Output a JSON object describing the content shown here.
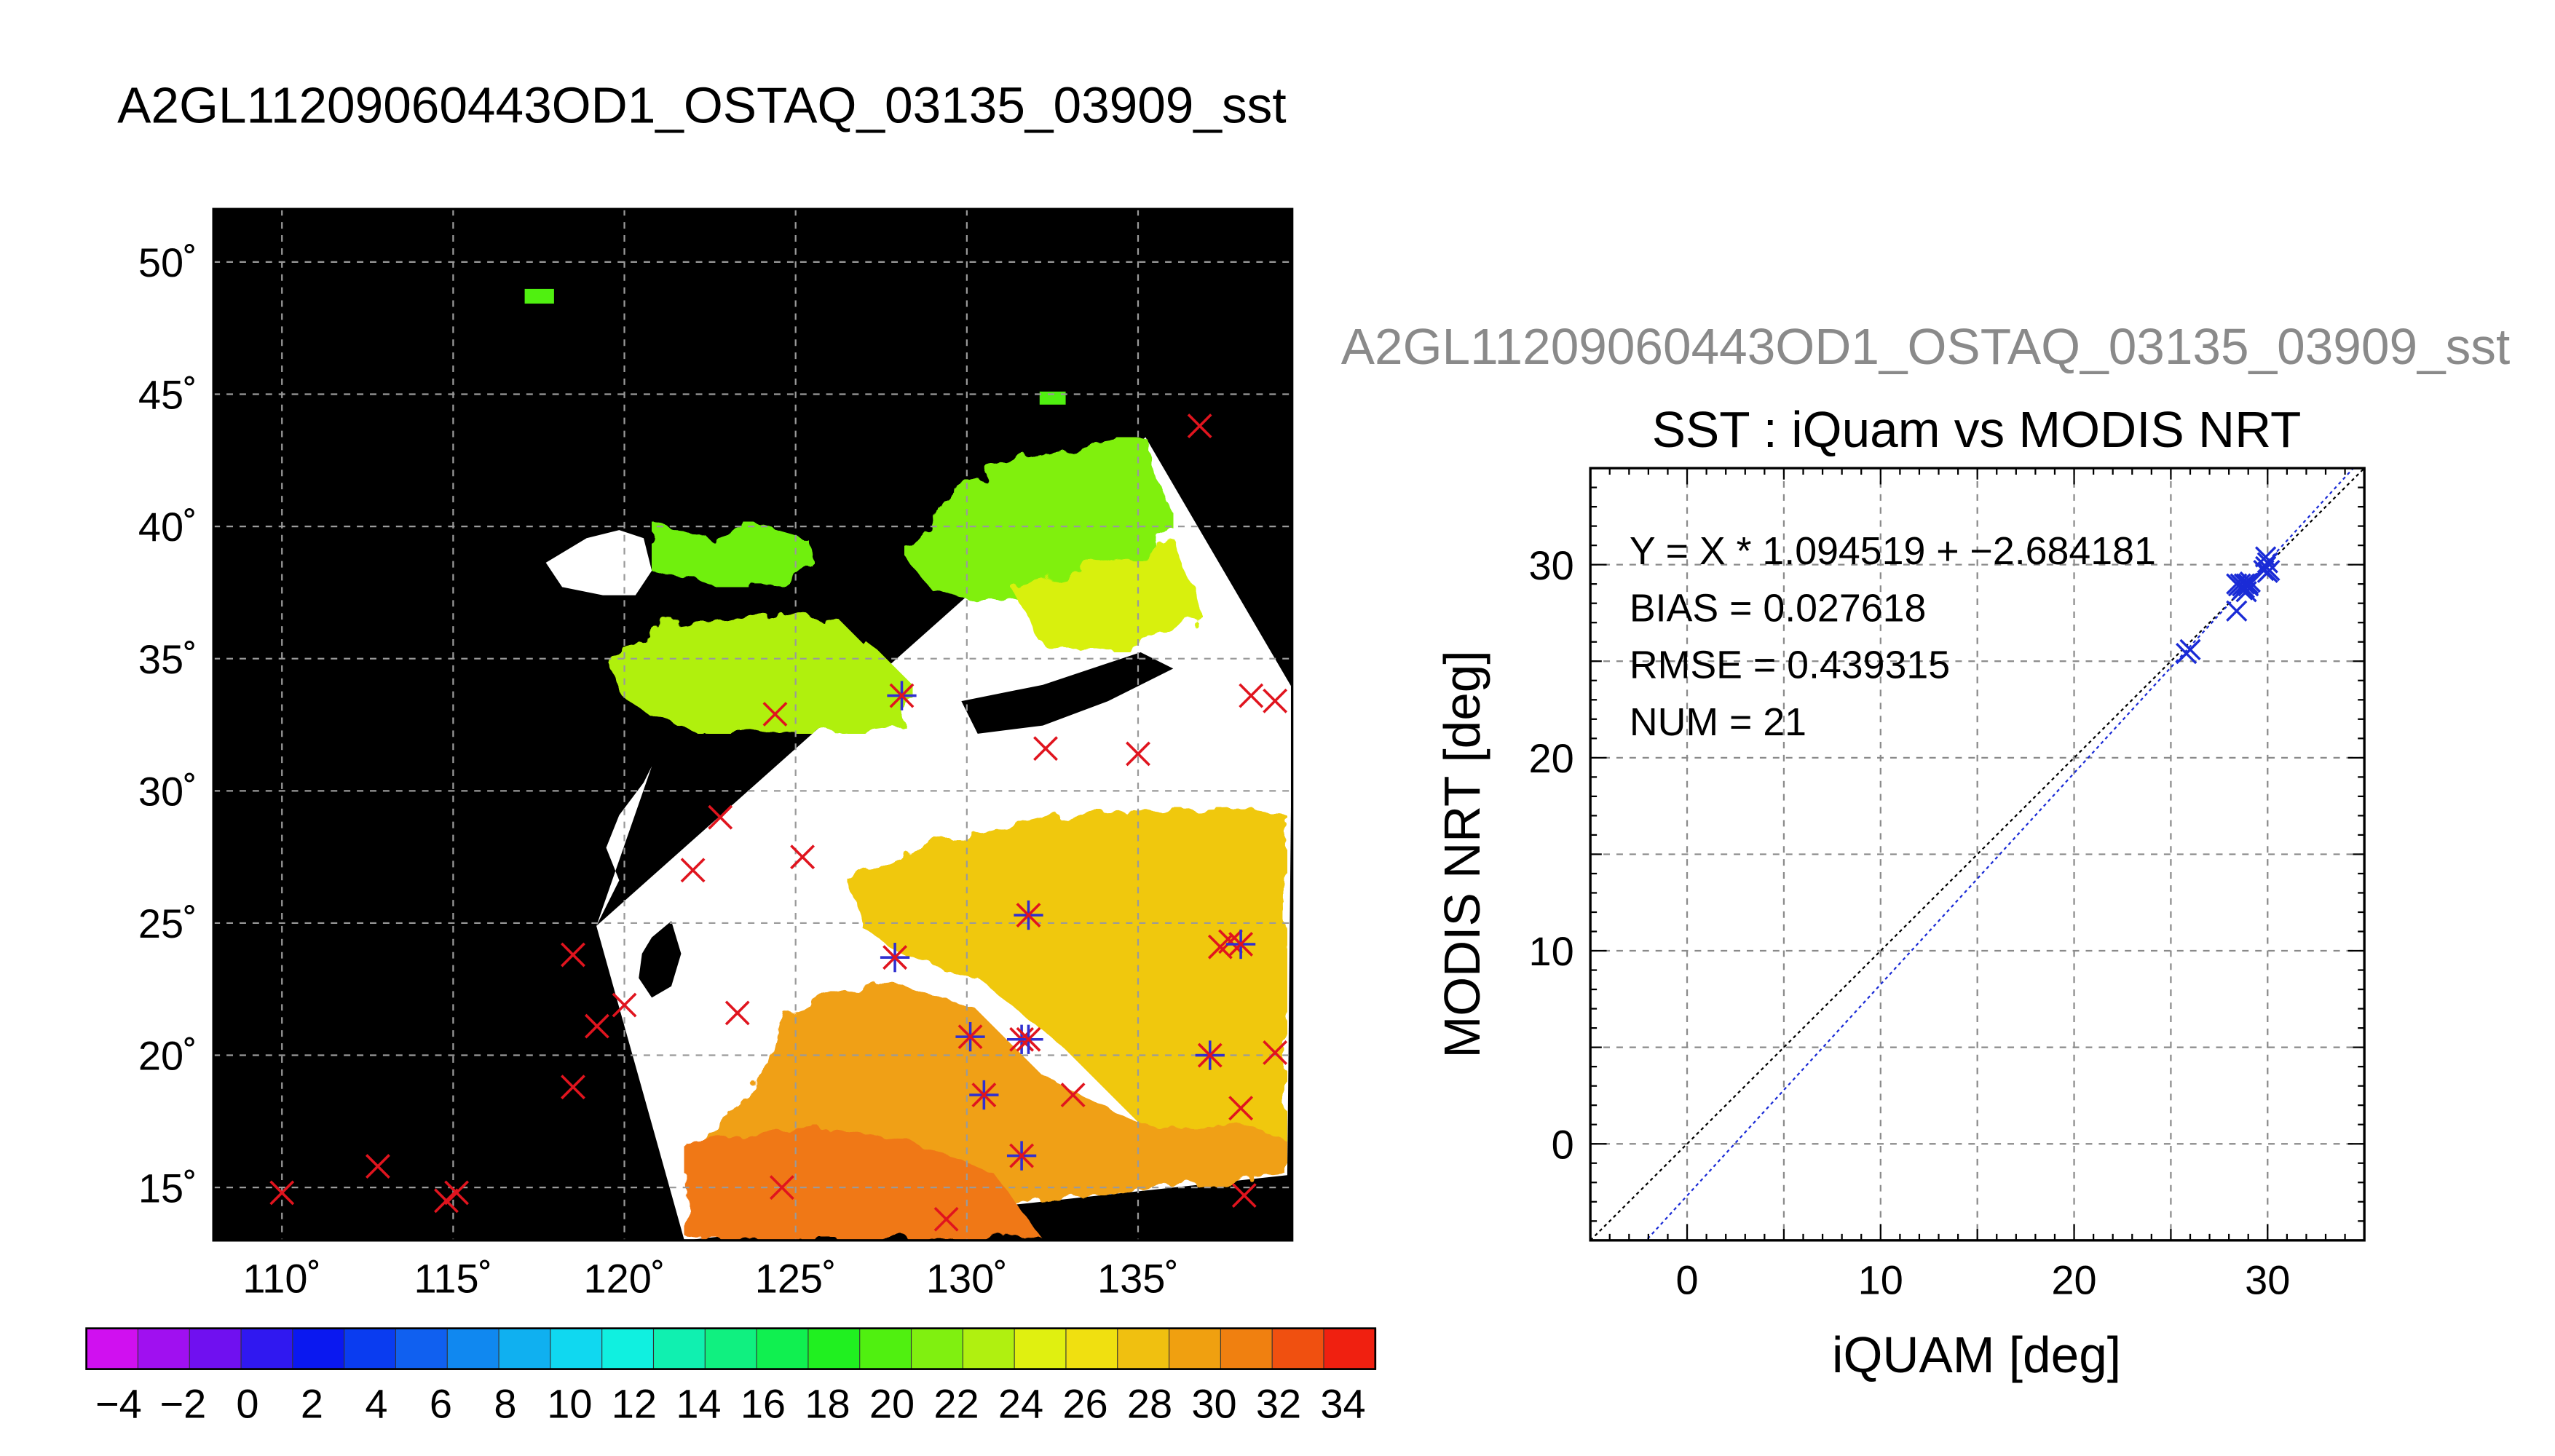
{
  "page_title": "A2GL11209060443OD1_OSTAQ_03135_03909_sst",
  "colors": {
    "background": "#ffffff",
    "map_land": "#000000",
    "cloud": "#ffffff",
    "marker_red": "#e0141e",
    "marker_blue": "#3030d0",
    "fit_line": "#1a2bd6",
    "one_to_one_line": "#000000"
  },
  "map": {
    "lat_ticks": [
      "50˚",
      "45˚",
      "40˚",
      "35˚",
      "30˚",
      "25˚",
      "20˚",
      "15˚"
    ],
    "lon_ticks": [
      "110˚",
      "115˚",
      "120˚",
      "125˚",
      "130˚",
      "135˚"
    ],
    "lat_range": [
      13,
      52
    ],
    "lon_range": [
      108,
      139.5
    ],
    "grid": true,
    "colorbar": {
      "range": [
        -5,
        35
      ],
      "tick_labels": [
        "−4",
        "−2",
        "0",
        "2",
        "4",
        "6",
        "8",
        "10",
        "12",
        "14",
        "16",
        "18",
        "20",
        "22",
        "24",
        "26",
        "28",
        "30",
        "32",
        "34"
      ],
      "colors": [
        "#d010f0",
        "#a010f0",
        "#7010f0",
        "#3018f0",
        "#0a18f0",
        "#0a3cf0",
        "#1060f0",
        "#1088f0",
        "#10b0f0",
        "#10d8f0",
        "#10f0e0",
        "#10f0b0",
        "#10f080",
        "#10f050",
        "#20f020",
        "#50f010",
        "#80f010",
        "#b0f010",
        "#e0f010",
        "#f0e010",
        "#f0c010",
        "#f0a010",
        "#f08010",
        "#f05010",
        "#f02010"
      ]
    },
    "red_markers": [
      {
        "lon": 110,
        "lat": 14.8
      },
      {
        "lon": 112.8,
        "lat": 15.8
      },
      {
        "lon": 114.8,
        "lat": 14.5
      },
      {
        "lon": 115.1,
        "lat": 14.8
      },
      {
        "lon": 118.5,
        "lat": 23.8
      },
      {
        "lon": 118.5,
        "lat": 18.8
      },
      {
        "lon": 119.2,
        "lat": 21.1
      },
      {
        "lon": 120,
        "lat": 21.9
      },
      {
        "lon": 122,
        "lat": 27
      },
      {
        "lon": 122.8,
        "lat": 29
      },
      {
        "lon": 123.3,
        "lat": 21.6
      },
      {
        "lon": 124.4,
        "lat": 32.9
      },
      {
        "lon": 124.6,
        "lat": 15
      },
      {
        "lon": 125.2,
        "lat": 27.5
      },
      {
        "lon": 129.4,
        "lat": 13.8
      },
      {
        "lon": 132.3,
        "lat": 31.6
      },
      {
        "lon": 133.1,
        "lat": 18.5
      },
      {
        "lon": 135,
        "lat": 31.4
      },
      {
        "lon": 136.8,
        "lat": 43.8
      },
      {
        "lon": 137.4,
        "lat": 24.1
      },
      {
        "lon": 137.7,
        "lat": 24.3
      },
      {
        "lon": 138,
        "lat": 18
      },
      {
        "lon": 138.1,
        "lat": 14.7
      },
      {
        "lon": 138.3,
        "lat": 33.6
      },
      {
        "lon": 139,
        "lat": 33.4
      },
      {
        "lon": 139,
        "lat": 20.1
      }
    ],
    "matched_markers": [
      {
        "lon": 128.1,
        "lat": 33.6
      },
      {
        "lon": 127.9,
        "lat": 23.7
      },
      {
        "lon": 130.1,
        "lat": 20.7
      },
      {
        "lon": 130.5,
        "lat": 18.5
      },
      {
        "lon": 131.6,
        "lat": 20.6
      },
      {
        "lon": 131.8,
        "lat": 20.6
      },
      {
        "lon": 131.8,
        "lat": 25.3
      },
      {
        "lon": 131.6,
        "lat": 16.2
      },
      {
        "lon": 137.1,
        "lat": 20
      },
      {
        "lon": 138,
        "lat": 24.2
      }
    ]
  },
  "scatter": {
    "title_faded": "A2GL11209060443OD1_OSTAQ_03135_03909_sst",
    "title": "SST : iQuam vs MODIS NRT",
    "xlabel": "iQUAM [deg]",
    "ylabel": "MODIS NRT [deg]",
    "x_ticks": [
      "0",
      "10",
      "20",
      "30"
    ],
    "y_ticks": [
      "0",
      "10",
      "20",
      "30"
    ],
    "stats": {
      "equation": "Y = X * 1.094519 + −2.684181",
      "bias": "BIAS = 0.027618",
      "rmse": "RMSE = 0.439315",
      "num": "NUM = 21"
    }
  },
  "chart_data": [
    {
      "type": "heatmap",
      "title": "A2GL11209060443OD1_OSTAQ_03135_03909_sst",
      "xlabel": "",
      "ylabel": "",
      "x_ticks": [
        110,
        115,
        120,
        125,
        130,
        135
      ],
      "y_ticks": [
        15,
        20,
        25,
        30,
        35,
        40,
        45,
        50
      ],
      "xlim": [
        108,
        139.5
      ],
      "ylim": [
        13,
        52
      ],
      "grid": true,
      "colorbar_range": [
        -5,
        35
      ],
      "colorbar_ticks": [
        -4,
        -2,
        0,
        2,
        4,
        6,
        8,
        10,
        12,
        14,
        16,
        18,
        20,
        22,
        24,
        26,
        28,
        30,
        32,
        34
      ]
    },
    {
      "type": "scatter",
      "title": "SST : iQuam vs MODIS NRT",
      "xlabel": "iQUAM [deg]",
      "ylabel": "MODIS NRT [deg]",
      "xlim": [
        -5,
        35
      ],
      "ylim": [
        -5,
        35
      ],
      "grid": true,
      "series": [
        {
          "points": [
            [
              25.8,
              25.4
            ],
            [
              26.0,
              25.6
            ],
            [
              28.4,
              27.6
            ],
            [
              28.4,
              29.0
            ],
            [
              28.5,
              28.9
            ],
            [
              28.6,
              29.0
            ],
            [
              28.7,
              28.9
            ],
            [
              28.7,
              28.7
            ],
            [
              28.8,
              29.0
            ],
            [
              28.8,
              28.8
            ],
            [
              28.9,
              29.0
            ],
            [
              28.9,
              28.6
            ],
            [
              29.0,
              29.0
            ],
            [
              29.0,
              28.9
            ],
            [
              29.1,
              29.1
            ],
            [
              29.8,
              29.7
            ],
            [
              29.9,
              29.9
            ],
            [
              29.9,
              30.4
            ],
            [
              30.0,
              29.6
            ],
            [
              30.0,
              30.1
            ],
            [
              30.1,
              29.7
            ]
          ]
        },
        {
          "fit": {
            "slope": 1.094519,
            "intercept": -2.684181
          }
        },
        {
          "reference": {
            "slope": 1,
            "intercept": 0
          }
        }
      ]
    }
  ]
}
